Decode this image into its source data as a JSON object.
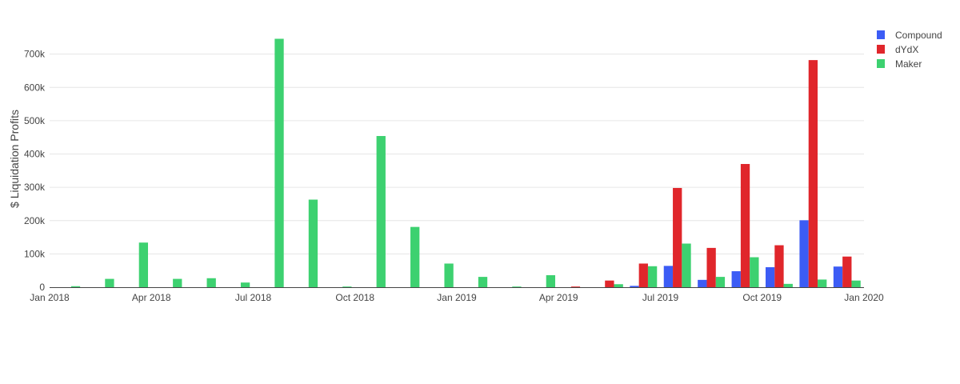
{
  "chart_data": {
    "type": "bar",
    "ylabel": "$ Liquidation Profits",
    "ylim": [
      0,
      800000
    ],
    "y_ticks": [
      0,
      100000,
      200000,
      300000,
      400000,
      500000,
      600000,
      700000
    ],
    "y_tick_labels": [
      "0",
      "100k",
      "200k",
      "300k",
      "400k",
      "500k",
      "600k",
      "700k"
    ],
    "x_tick_labels": [
      "Jan 2018",
      "Apr 2018",
      "Jul 2018",
      "Oct 2018",
      "Jan 2019",
      "Apr 2019",
      "Jul 2019",
      "Oct 2019",
      "Jan 2020"
    ],
    "categories": [
      "2018-01",
      "2018-02",
      "2018-03",
      "2018-04",
      "2018-05",
      "2018-06",
      "2018-07",
      "2018-08",
      "2018-09",
      "2018-10",
      "2018-11",
      "2018-12",
      "2019-01",
      "2019-02",
      "2019-03",
      "2019-04",
      "2019-05",
      "2019-06",
      "2019-07",
      "2019-08",
      "2019-09",
      "2019-10",
      "2019-11",
      "2019-12"
    ],
    "legend_position": "top-right",
    "grid": true,
    "series": [
      {
        "name": "Compound",
        "color": "#3c5cf5",
        "values": [
          0,
          0,
          0,
          0,
          0,
          0,
          0,
          0,
          0,
          0,
          0,
          0,
          0,
          0,
          0,
          0,
          0,
          4000,
          64000,
          22000,
          48000,
          60000,
          201000,
          62000
        ]
      },
      {
        "name": "dYdX",
        "color": "#e0262b",
        "values": [
          0,
          0,
          0,
          0,
          0,
          0,
          0,
          0,
          0,
          0,
          0,
          0,
          0,
          0,
          0,
          2000,
          20000,
          71000,
          298000,
          118000,
          370000,
          126000,
          682000,
          92000
        ]
      },
      {
        "name": "Maker",
        "color": "#3dd170",
        "values": [
          3000,
          25000,
          134000,
          25000,
          27000,
          14000,
          746000,
          263000,
          2000,
          454000,
          181000,
          71000,
          31000,
          2000,
          36000,
          0,
          9000,
          63000,
          131000,
          31000,
          90000,
          10000,
          23000,
          20000
        ]
      }
    ]
  }
}
